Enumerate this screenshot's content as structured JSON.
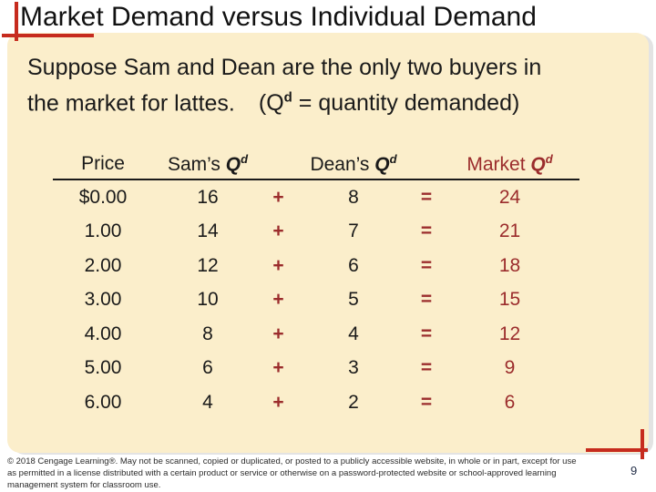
{
  "slide": {
    "title": "Market Demand versus Individual Demand",
    "body": {
      "line1": "Suppose Sam and Dean are the only two buyers in",
      "line2_text": "the market for lattes.",
      "note_open": "(Q",
      "note_sup": "d",
      "note_rest": " = quantity demanded)"
    },
    "table": {
      "col_price": "Price",
      "col_sam_prefix": "Sam’s ",
      "col_dean_prefix": "Dean’s ",
      "col_market_prefix": "Market ",
      "q_symbol": "Q",
      "q_sup": "d",
      "rows": [
        {
          "price": "$0.00",
          "sam": "16",
          "op_plus": "+",
          "dean": "8",
          "op_eq": "=",
          "market": "24"
        },
        {
          "price": "1.00",
          "sam": "14",
          "op_plus": "+",
          "dean": "7",
          "op_eq": "=",
          "market": "21"
        },
        {
          "price": "2.00",
          "sam": "12",
          "op_plus": "+",
          "dean": "6",
          "op_eq": "=",
          "market": "18"
        },
        {
          "price": "3.00",
          "sam": "10",
          "op_plus": "+",
          "dean": "5",
          "op_eq": "=",
          "market": "15"
        },
        {
          "price": "4.00",
          "sam": "8",
          "op_plus": "+",
          "dean": "4",
          "op_eq": "=",
          "market": "12"
        },
        {
          "price": "5.00",
          "sam": "6",
          "op_plus": "+",
          "dean": "3",
          "op_eq": "=",
          "market": "9"
        },
        {
          "price": "6.00",
          "sam": "4",
          "op_plus": "+",
          "dean": "2",
          "op_eq": "=",
          "market": "6"
        }
      ]
    },
    "footer": {
      "lines": [
        "© 2018 Cengage Learning®. May not be scanned, copied or duplicated, or posted to a publicly accessible website, in whole or in part, except for use",
        "as permitted in a license distributed with a certain product or service or otherwise on a password-protected website or school-approved learning",
        "management system for classroom use."
      ],
      "page_number": "9"
    },
    "colors": {
      "panel_bg": "#FBEECB",
      "accent_dark_red": "#9B2C2C",
      "crop_mark_red": "#C62B1E",
      "title_text": "#111111",
      "page_number_text": "#1E2A44"
    }
  }
}
